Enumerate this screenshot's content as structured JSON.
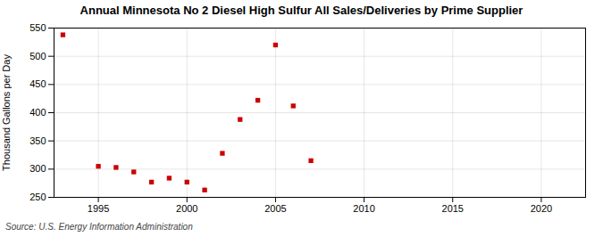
{
  "chart_data": {
    "type": "scatter",
    "title": "Annual Minnesota No 2 Diesel High Sulfur All Sales/Deliveries by Prime Supplier",
    "ylabel": "Thousand Gallons per Day",
    "source": "Source: U.S. Energy Information Administration",
    "x": [
      1993,
      1995,
      1996,
      1997,
      1998,
      1999,
      2000,
      2001,
      2002,
      2003,
      2004,
      2005,
      2006,
      2007
    ],
    "values": [
      538,
      305,
      303,
      295,
      277,
      284,
      277,
      263,
      328,
      388,
      422,
      520,
      412,
      315
    ],
    "color": "#cc0000",
    "marker": "square",
    "xlim": [
      1992.5,
      2022.5
    ],
    "ylim": [
      250,
      550
    ],
    "xticks": [
      1995,
      2000,
      2005,
      2010,
      2015,
      2020
    ],
    "yticks": [
      250,
      300,
      350,
      400,
      450,
      500,
      550
    ],
    "grid": true
  }
}
